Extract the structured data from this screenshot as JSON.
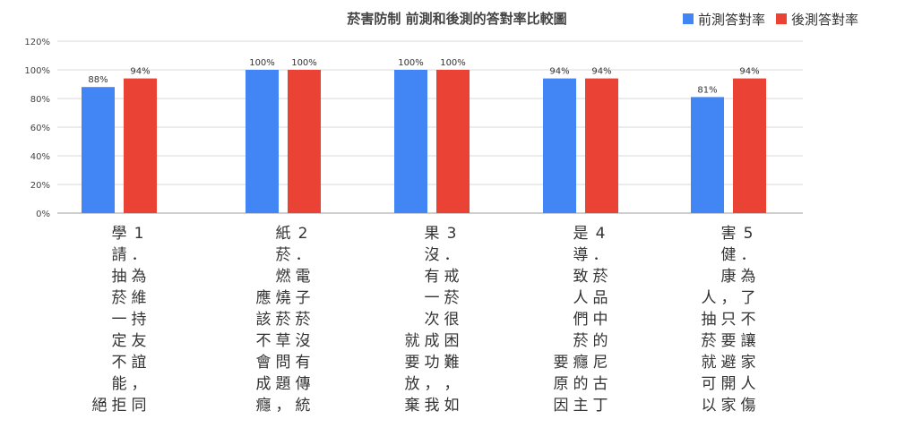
{
  "chart_data": {
    "type": "bar",
    "title": "菸害防制 前測和後測的答對率比較圖",
    "categories": [
      "1．為維持友誼，同學請抽菸一定不能拒絕",
      "2．電子菸沒有傳統紙菸燃燒菸草問題，應該不會成癮",
      "3．戒菸很困難，如果沒有一次成功，我就要放棄",
      "4．菸品中的尼古丁是導致人們菸癮的主要原因",
      "5．為了不讓家人傷害健康，只要避開家人抽菸就可以"
    ],
    "series": [
      {
        "name": "前測答對率",
        "color": "#4285f4",
        "values": [
          88,
          100,
          100,
          94,
          81
        ]
      },
      {
        "name": "後測答對率",
        "color": "#ea4335",
        "values": [
          94,
          100,
          100,
          94,
          94
        ]
      }
    ],
    "data_labels": [
      [
        "88%",
        "100%",
        "100%",
        "94%",
        "81%"
      ],
      [
        "94%",
        "100%",
        "100%",
        "94%",
        "94%"
      ]
    ],
    "ylim": [
      0,
      120
    ],
    "yticks": [
      "0%",
      "20%",
      "40%",
      "60%",
      "80%",
      "100%",
      "120%"
    ],
    "grid": true,
    "legend_position": "top-right"
  }
}
